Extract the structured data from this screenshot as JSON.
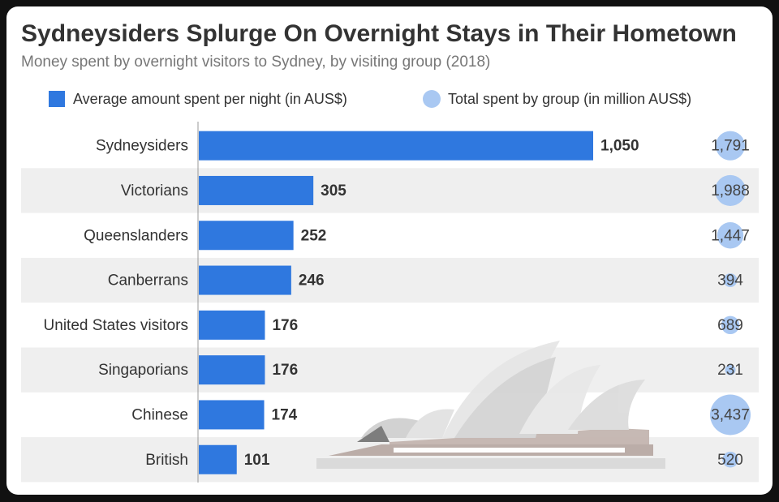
{
  "chart_data": {
    "type": "bar",
    "title": "Sydneysiders Splurge On Overnight Stays in Their Hometown",
    "subtitle": "Money spent by overnight visitors to Sydney, by visiting group (2018)",
    "categories": [
      "Sydneysiders",
      "Victorians",
      "Queenslanders",
      "Canberrans",
      "United States visitors",
      "Singaporians",
      "Chinese",
      "British"
    ],
    "series": [
      {
        "name": "Average amount spent per night (in AUS$)",
        "color": "#2f78df",
        "values": [
          1050,
          305,
          252,
          246,
          176,
          176,
          174,
          101
        ],
        "value_labels": [
          "1,050",
          "305",
          "252",
          "246",
          "176",
          "176",
          "174",
          "101"
        ]
      },
      {
        "name": "Total spent by group (in million AUS$)",
        "color": "#a9c8f2",
        "type": "bubble",
        "values": [
          1791,
          1988,
          1447,
          394,
          689,
          231,
          3437,
          520
        ],
        "value_labels": [
          "1,791",
          "1,988",
          "1,447",
          "394",
          "689",
          "231",
          "3,437",
          "520"
        ]
      }
    ]
  }
}
